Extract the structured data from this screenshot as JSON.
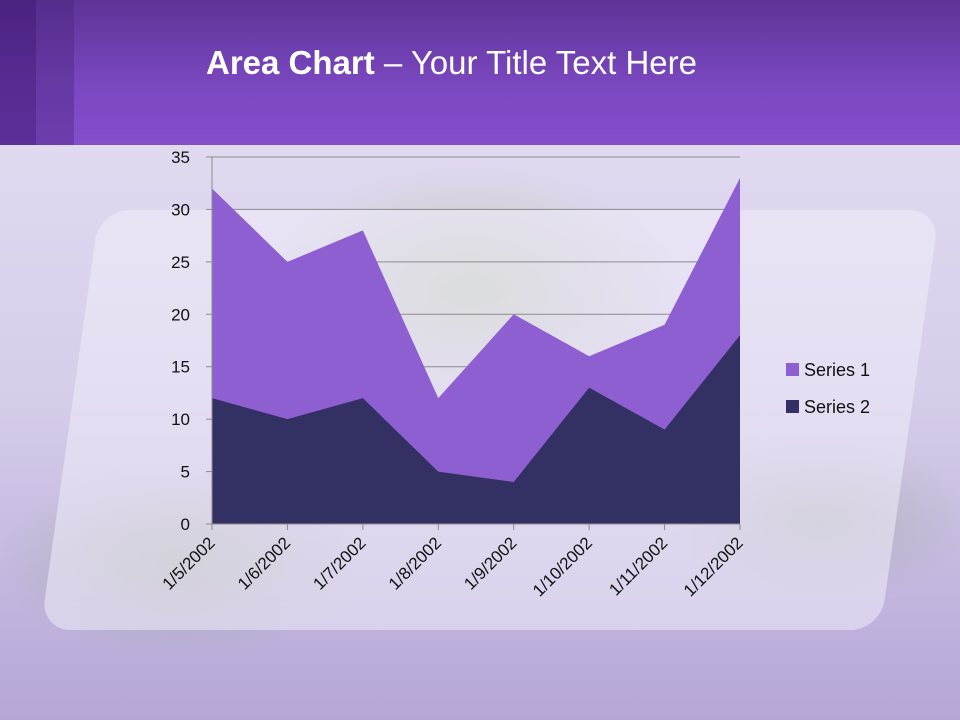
{
  "slide": {
    "title_bold": "Area Chart",
    "title_rest": " – Your Title Text Here"
  },
  "colors": {
    "series1": "#8e5fd1",
    "series2": "#333063",
    "header": "#7a48c0"
  },
  "chart_data": {
    "type": "area",
    "stacked": true,
    "categories": [
      "1/5/2002",
      "1/6/2002",
      "1/7/2002",
      "1/8/2002",
      "1/9/2002",
      "1/10/2002",
      "1/11/2002",
      "1/12/2002"
    ],
    "series": [
      {
        "name": "Series 1",
        "values": [
          20,
          15,
          16,
          7,
          16,
          3,
          10,
          15
        ],
        "color": "#8e5fd1"
      },
      {
        "name": "Series 2",
        "values": [
          12,
          10,
          12,
          5,
          4,
          13,
          9,
          18
        ],
        "color": "#333063"
      }
    ],
    "ylim": [
      0,
      35
    ],
    "yticks": [
      0,
      5,
      10,
      15,
      20,
      25,
      30,
      35
    ],
    "grid": true,
    "legend": "right"
  }
}
